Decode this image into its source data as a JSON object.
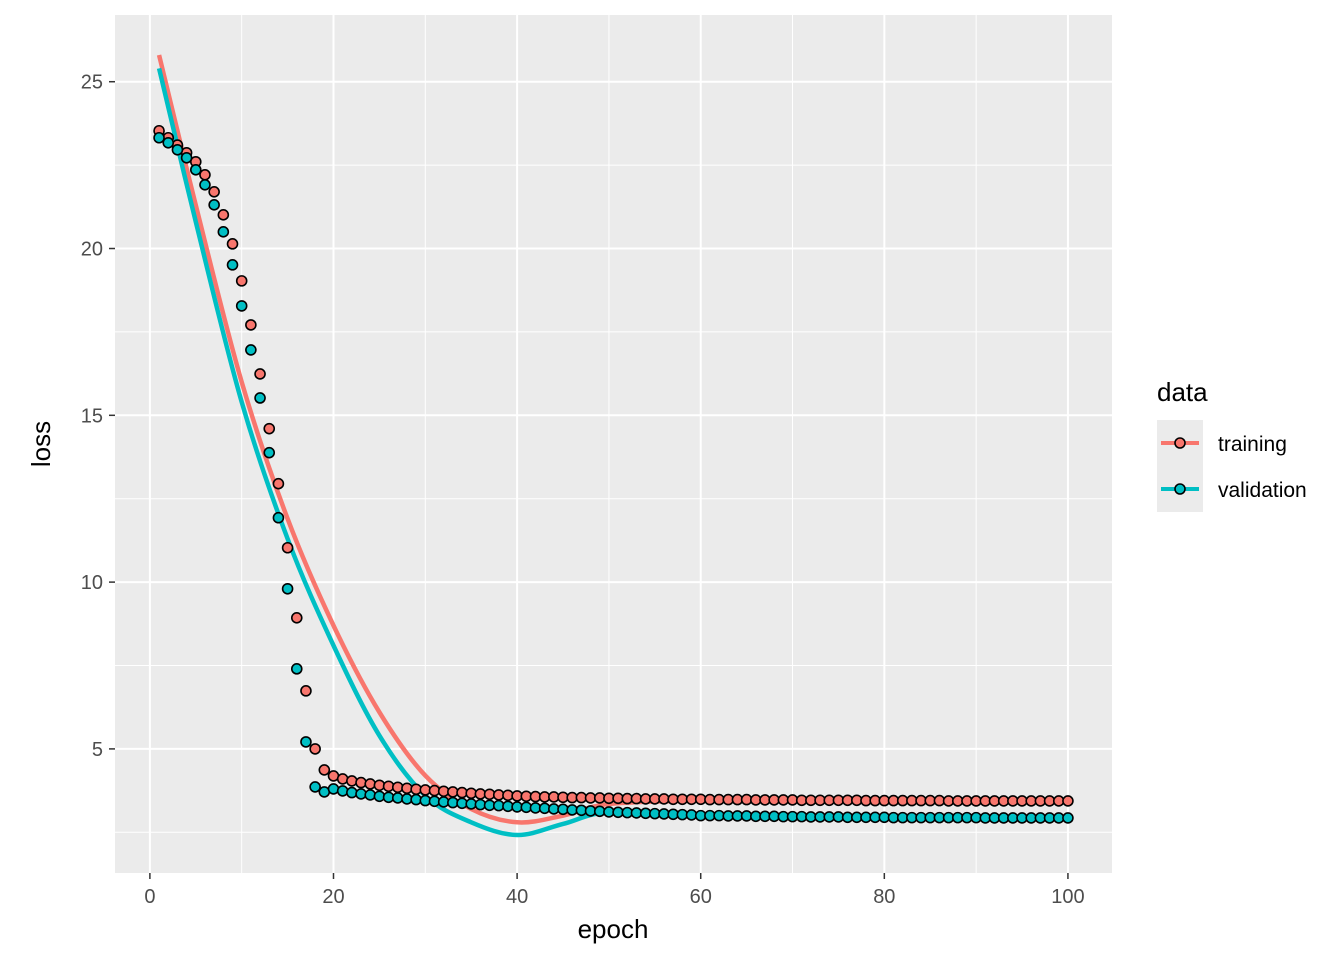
{
  "chart_data": {
    "type": "scatter",
    "title": "",
    "xlabel": "epoch",
    "ylabel": "loss",
    "xlim": [
      -3.8,
      104.8
    ],
    "ylim": [
      1.28,
      27.0
    ],
    "x_ticks": [
      "0",
      "20",
      "40",
      "60",
      "80",
      "100"
    ],
    "y_ticks": [
      "5",
      "10",
      "15",
      "20",
      "25"
    ],
    "grid": true,
    "legend": {
      "title": "data",
      "placement": "right",
      "entries": [
        "training",
        "validation"
      ]
    },
    "colors": {
      "training": "#F8766D",
      "validation": "#00BFC4",
      "panel": "#EBEBEB"
    },
    "series": [
      {
        "name": "training",
        "values": [
          23.53,
          23.32,
          23.1,
          22.87,
          22.6,
          22.21,
          21.7,
          21.01,
          20.14,
          19.03,
          17.71,
          16.24,
          14.6,
          12.95,
          11.03,
          8.93,
          6.74,
          5.0,
          4.37,
          4.19,
          4.1,
          4.04,
          3.99,
          3.95,
          3.91,
          3.88,
          3.85,
          3.82,
          3.79,
          3.77,
          3.75,
          3.73,
          3.71,
          3.69,
          3.67,
          3.65,
          3.64,
          3.62,
          3.61,
          3.59,
          3.58,
          3.57,
          3.56,
          3.56,
          3.55,
          3.54,
          3.54,
          3.53,
          3.53,
          3.52,
          3.52,
          3.51,
          3.51,
          3.5,
          3.5,
          3.5,
          3.49,
          3.49,
          3.49,
          3.49,
          3.48,
          3.48,
          3.48,
          3.48,
          3.48,
          3.47,
          3.47,
          3.47,
          3.47,
          3.47,
          3.46,
          3.46,
          3.46,
          3.46,
          3.46,
          3.46,
          3.46,
          3.45,
          3.45,
          3.45,
          3.45,
          3.45,
          3.45,
          3.45,
          3.45,
          3.45,
          3.44,
          3.44,
          3.44,
          3.44,
          3.44,
          3.44,
          3.44,
          3.44,
          3.44,
          3.44,
          3.44,
          3.44,
          3.44,
          3.44
        ],
        "smooth_x": [
          1,
          5,
          10,
          15,
          20,
          25,
          30,
          35,
          40,
          45,
          50,
          60,
          70,
          80,
          90,
          100
        ],
        "smooth_y": [
          25.8,
          21.3,
          16.0,
          11.9,
          8.7,
          6.1,
          4.2,
          3.2,
          2.8,
          3.0,
          3.35,
          3.45,
          3.45,
          3.45,
          3.44,
          3.44
        ]
      },
      {
        "name": "validation",
        "values": [
          23.32,
          23.17,
          22.96,
          22.72,
          22.36,
          21.91,
          21.31,
          20.5,
          19.51,
          18.28,
          16.96,
          15.52,
          13.88,
          11.93,
          9.8,
          7.4,
          5.21,
          3.86,
          3.71,
          3.8,
          3.74,
          3.69,
          3.65,
          3.62,
          3.58,
          3.55,
          3.53,
          3.5,
          3.48,
          3.45,
          3.43,
          3.41,
          3.39,
          3.37,
          3.35,
          3.33,
          3.31,
          3.3,
          3.28,
          3.26,
          3.25,
          3.23,
          3.22,
          3.2,
          3.19,
          3.17,
          3.16,
          3.14,
          3.13,
          3.11,
          3.1,
          3.09,
          3.08,
          3.07,
          3.06,
          3.05,
          3.04,
          3.03,
          3.02,
          3.0,
          3.0,
          3.0,
          2.99,
          2.99,
          2.99,
          2.98,
          2.98,
          2.98,
          2.97,
          2.97,
          2.97,
          2.96,
          2.96,
          2.96,
          2.96,
          2.95,
          2.95,
          2.95,
          2.95,
          2.95,
          2.94,
          2.94,
          2.94,
          2.94,
          2.94,
          2.94,
          2.94,
          2.94,
          2.94,
          2.94,
          2.93,
          2.93,
          2.93,
          2.93,
          2.93,
          2.93,
          2.93,
          2.93,
          2.93,
          2.93
        ],
        "smooth_x": [
          1,
          5,
          10,
          15,
          20,
          25,
          30,
          35,
          40,
          45,
          50,
          60,
          70,
          80,
          90,
          100
        ],
        "smooth_y": [
          25.4,
          20.8,
          15.4,
          11.3,
          8.1,
          5.4,
          3.6,
          2.8,
          2.42,
          2.75,
          3.1,
          3.0,
          2.96,
          2.94,
          2.93,
          2.93
        ]
      }
    ]
  }
}
